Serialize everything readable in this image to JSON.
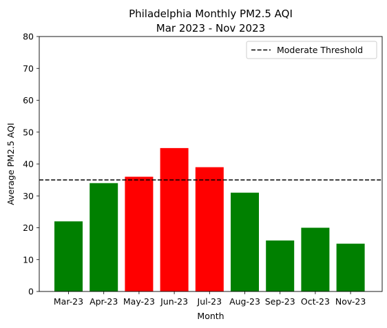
{
  "chart_data": {
    "type": "bar",
    "title": "Philadelphia Monthly PM2.5 AQI",
    "subtitle": "Mar 2023 - Nov 2023",
    "xlabel": "Month",
    "ylabel": "Average PM2.5 AQI",
    "ylim": [
      0,
      80
    ],
    "yticks": [
      0,
      10,
      20,
      30,
      40,
      50,
      60,
      70,
      80
    ],
    "categories": [
      "Mar-23",
      "Apr-23",
      "May-23",
      "Jun-23",
      "Jul-23",
      "Aug-23",
      "Sep-23",
      "Oct-23",
      "Nov-23"
    ],
    "values": [
      22,
      34,
      36,
      45,
      39,
      31,
      16,
      20,
      15
    ],
    "bar_colors": [
      "#008000",
      "#008000",
      "#ff0000",
      "#ff0000",
      "#ff0000",
      "#008000",
      "#008000",
      "#008000",
      "#008000"
    ],
    "threshold": {
      "name": "Moderate Threshold",
      "value": 35,
      "color": "#000000",
      "style": "dashed"
    },
    "legend_position": "top-right",
    "grid": false
  }
}
